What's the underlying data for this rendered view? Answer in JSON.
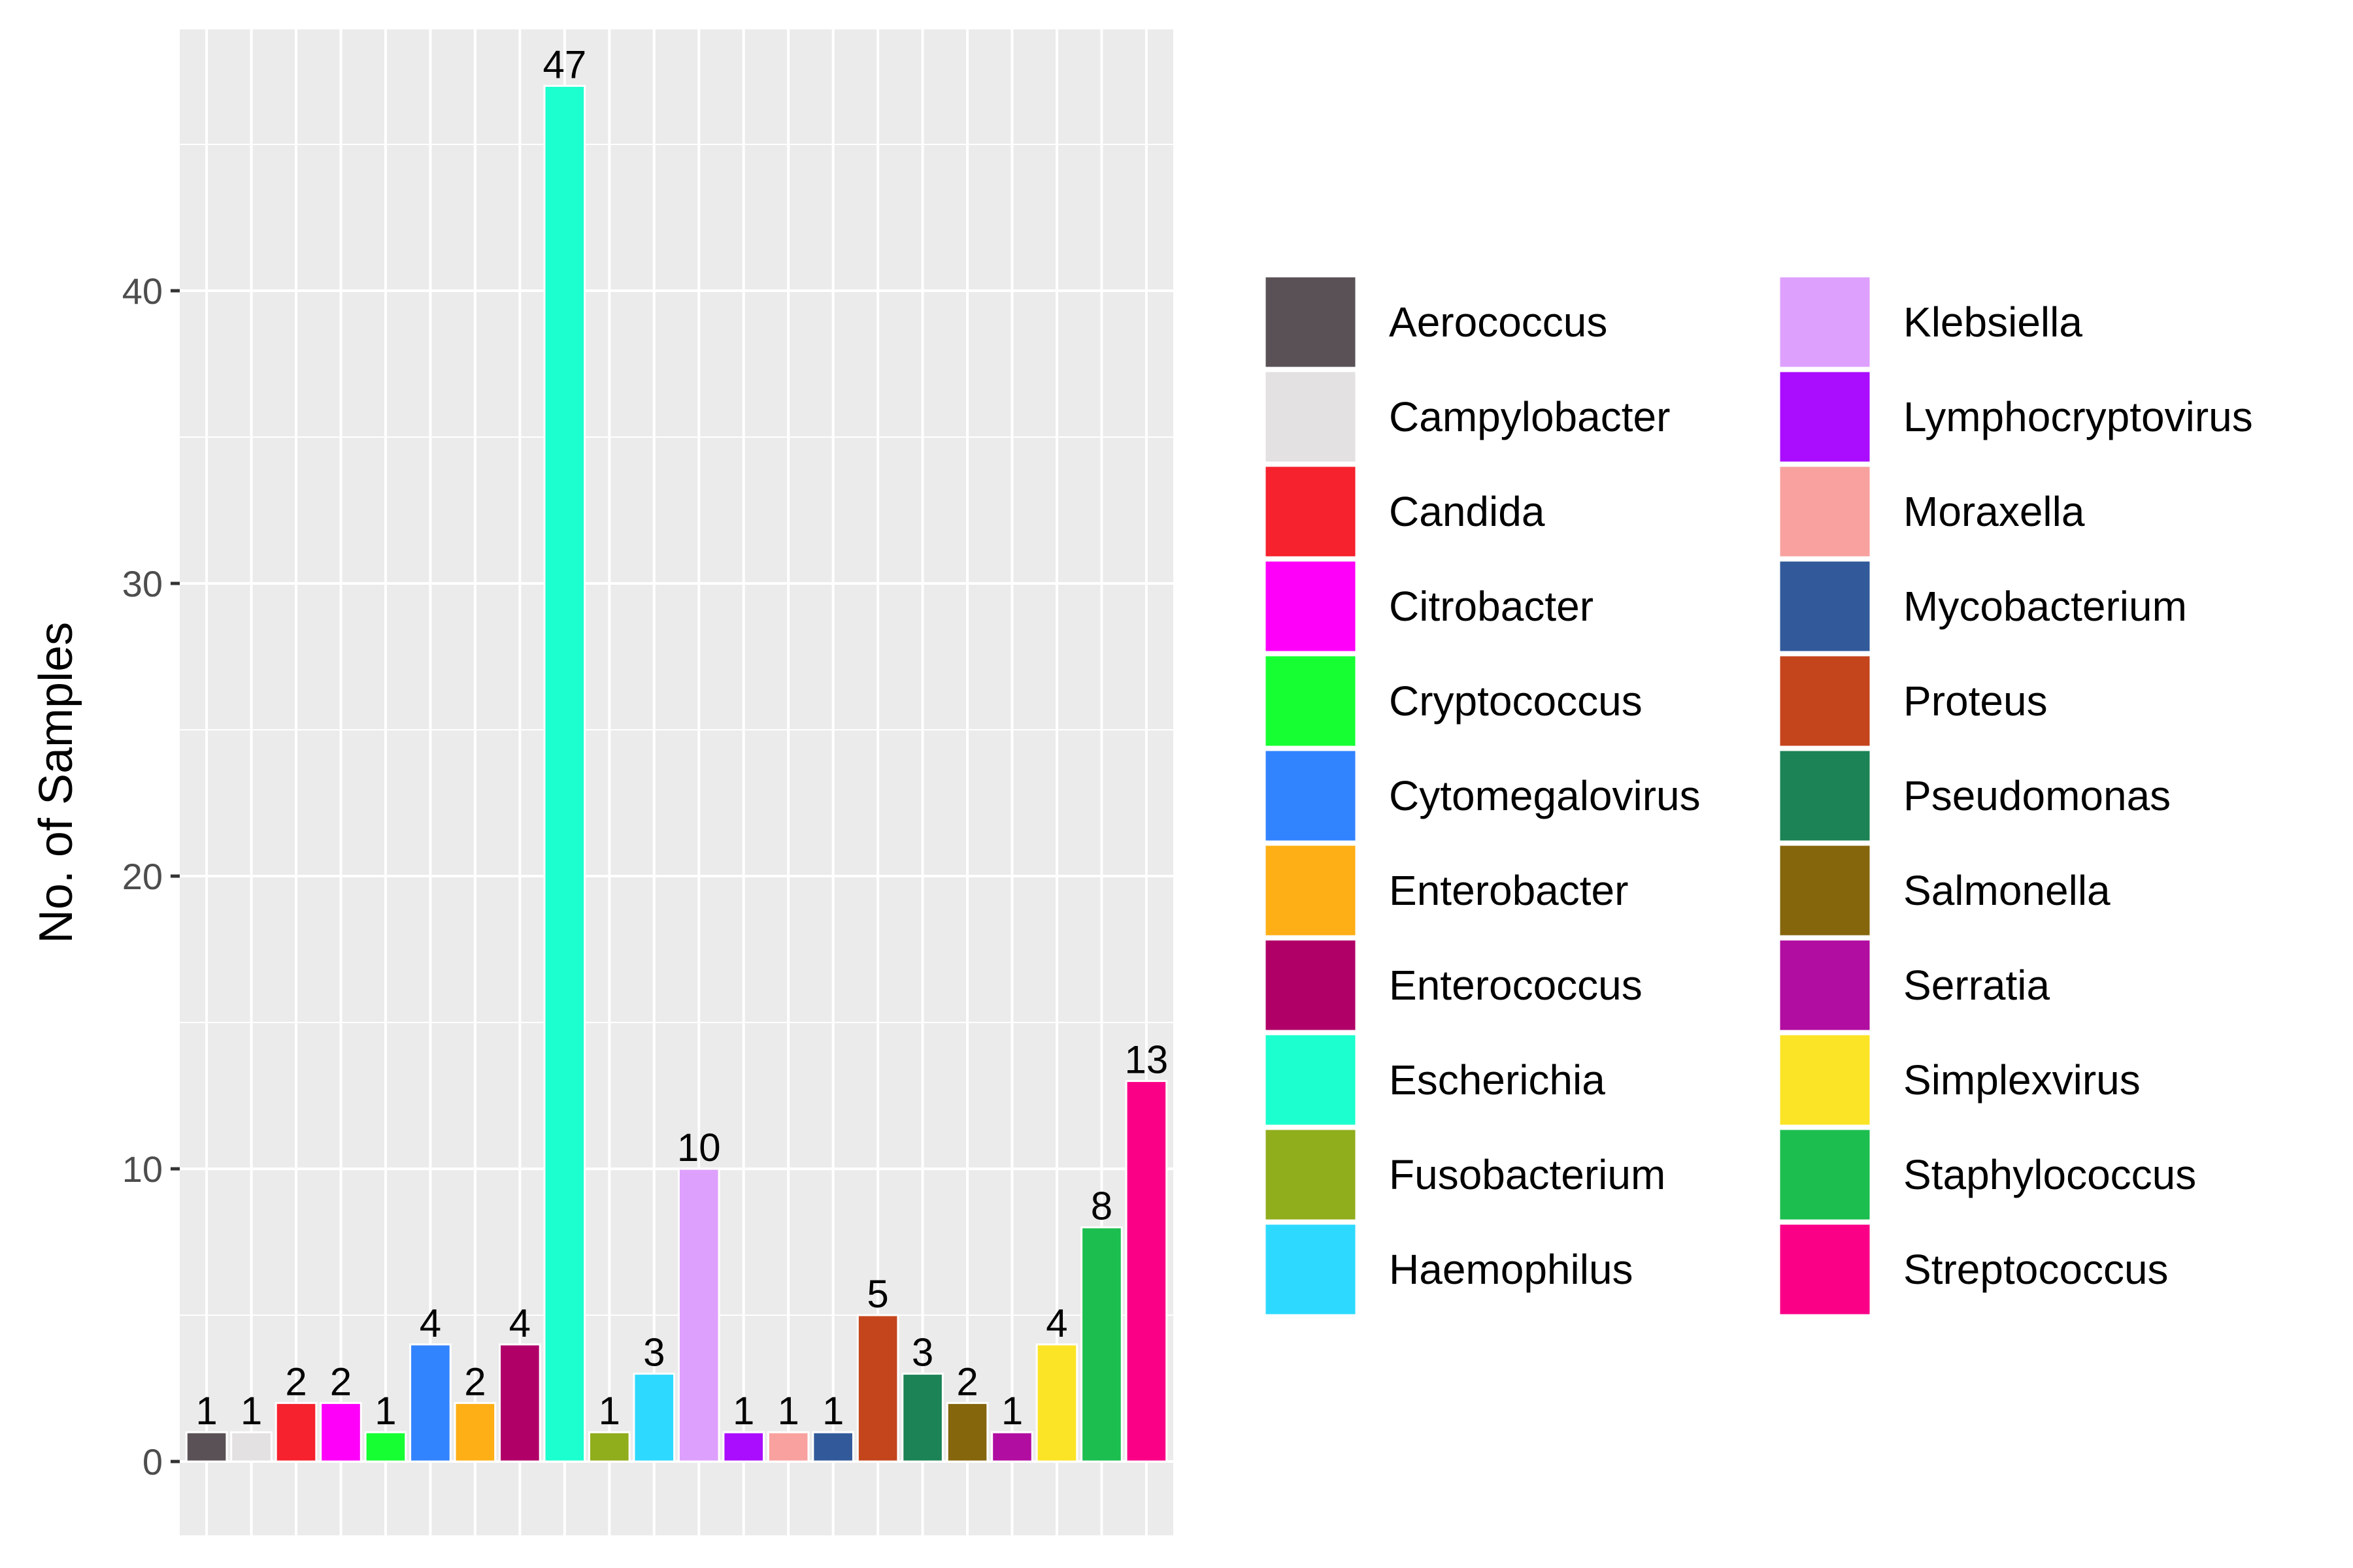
{
  "chart_data": {
    "type": "bar",
    "title": "",
    "xlabel": "",
    "ylabel": "No. of Samples",
    "ylim": [
      0,
      49.35
    ],
    "y_ticks": [
      0,
      10,
      20,
      30,
      40
    ],
    "grid": true,
    "legend_position": "right",
    "data_labels": true,
    "categories": [
      "Aerococcus",
      "Campylobacter",
      "Candida",
      "Citrobacter",
      "Cryptococcus",
      "Cytomegalovirus",
      "Enterobacter",
      "Enterococcus",
      "Escherichia",
      "Fusobacterium",
      "Haemophilus",
      "Klebsiella",
      "Lymphocryptovirus",
      "Moraxella",
      "Mycobacterium",
      "Proteus",
      "Pseudomonas",
      "Salmonella",
      "Serratia",
      "Simplexvirus",
      "Staphylococcus",
      "Streptococcus"
    ],
    "values": [
      1,
      1,
      2,
      2,
      1,
      4,
      2,
      4,
      47,
      1,
      3,
      10,
      1,
      1,
      1,
      5,
      3,
      2,
      1,
      4,
      8,
      13
    ],
    "colors": [
      "#5A5156",
      "#E4E1E3",
      "#F6222E",
      "#FE00FA",
      "#16FF32",
      "#3283FE",
      "#FEAF16",
      "#B00068",
      "#1CFFCE",
      "#90AD1C",
      "#2ED9FF",
      "#DEA0FD",
      "#AA0DFE",
      "#F8A19F",
      "#325A9B",
      "#C4451C",
      "#1C8356",
      "#85660D",
      "#B10DA1",
      "#FBE426",
      "#1CBE4F",
      "#FA0087"
    ]
  }
}
